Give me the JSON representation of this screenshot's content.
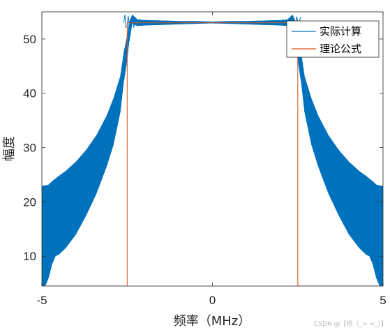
{
  "chart_data": {
    "type": "line",
    "title": "",
    "xlabel": "频率（MHz）",
    "ylabel": "幅度",
    "xlim": [
      -5,
      5
    ],
    "ylim": [
      4.5,
      55
    ],
    "xticks": [
      -5,
      0,
      5
    ],
    "yticks": [
      10,
      20,
      30,
      40,
      50
    ],
    "grid": false,
    "legend_position": "top-right",
    "series": [
      {
        "name": "实际计算",
        "color": "#0072BD",
        "style": "oscillating envelope",
        "x": [
          -5.0,
          -4.9,
          -4.8,
          -4.7,
          -4.6,
          -4.5,
          -4.3,
          -4.0,
          -3.7,
          -3.4,
          -3.1,
          -2.9,
          -2.7,
          -2.6,
          -2.5,
          -2.45,
          -2.35,
          -2.2,
          -2.0,
          -1.5,
          -1.0,
          -0.5,
          0.0,
          0.5,
          1.0,
          1.5,
          2.0,
          2.2,
          2.35,
          2.45,
          2.5,
          2.6,
          2.7,
          2.9,
          3.1,
          3.4,
          3.7,
          4.0,
          4.3,
          4.5,
          4.6,
          4.7,
          4.8,
          4.9,
          5.0
        ],
        "upper": [
          23,
          23,
          23.2,
          23.8,
          24.3,
          24.8,
          25.7,
          27.4,
          29.6,
          32.3,
          35.9,
          39.1,
          43.2,
          47.6,
          50.6,
          53,
          54.5,
          53.6,
          53.5,
          53.4,
          53.3,
          53.3,
          53.2,
          53.3,
          53.3,
          53.4,
          53.5,
          53.6,
          54.5,
          53,
          50.6,
          47.6,
          43.2,
          39.1,
          35.9,
          32.3,
          29.6,
          27.4,
          25.7,
          24.8,
          24.3,
          23.8,
          23.2,
          23,
          23
        ],
        "lower": [
          4.5,
          4.5,
          6.0,
          8.5,
          10.0,
          10.3,
          11.5,
          14.0,
          17.5,
          21.5,
          26.5,
          30.5,
          36.5,
          42.0,
          46.0,
          49.0,
          52.8,
          52.4,
          52.5,
          52.6,
          52.7,
          52.8,
          52.9,
          52.8,
          52.7,
          52.6,
          52.5,
          52.4,
          52.8,
          49.0,
          46.0,
          42.0,
          36.5,
          30.5,
          26.5,
          21.5,
          17.5,
          14.0,
          11.5,
          10.3,
          10.0,
          8.5,
          6.0,
          4.5,
          4.5
        ],
        "center_line": [
          23,
          23,
          22,
          21.5,
          21,
          21.5,
          22.5,
          24.5,
          27.5,
          30.5,
          34.5,
          38.5,
          42.5,
          46.5,
          50,
          52.3,
          53.5,
          53.2,
          53,
          53,
          53,
          53,
          53,
          53,
          53,
          53,
          53,
          53.2,
          53.5,
          52.3,
          50,
          46.5,
          42.5,
          38.5,
          34.5,
          30.5,
          27.5,
          24.5,
          22.5,
          21.5,
          21,
          21.5,
          22,
          23,
          23
        ]
      },
      {
        "name": "理论公式",
        "color": "#D95319",
        "style": "rectangular",
        "x": [
          -5,
          -2.5,
          -2.5,
          2.5,
          2.5,
          5
        ],
        "values": [
          4.5,
          4.5,
          53,
          53,
          4.5,
          4.5
        ]
      }
    ]
  },
  "watermark": "CSDN @【杨（_> <_）】"
}
